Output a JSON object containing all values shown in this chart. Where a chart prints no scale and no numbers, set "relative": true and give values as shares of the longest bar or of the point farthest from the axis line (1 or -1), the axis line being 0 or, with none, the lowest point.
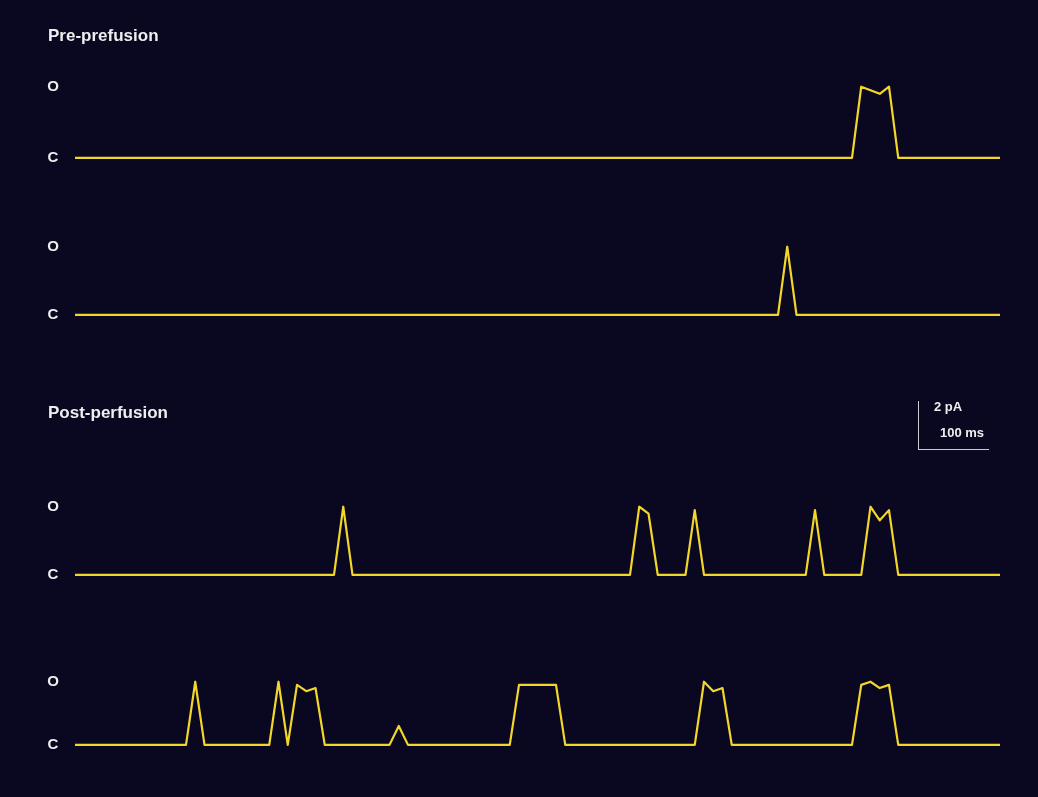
{
  "chart_data": [
    {
      "type": "line",
      "title": "Pre-prefusion",
      "relative": true,
      "annotations": [
        "O",
        "C"
      ],
      "categories": [
        null,
        null,
        null,
        null,
        null,
        null,
        null,
        null,
        null,
        null,
        null,
        null,
        null,
        null,
        null,
        null,
        null,
        null,
        null,
        null,
        null,
        null,
        null,
        null,
        null,
        null,
        null,
        null,
        null,
        null,
        null,
        null,
        null,
        null,
        null,
        null,
        null,
        null,
        null,
        null,
        null,
        null,
        null,
        null,
        null,
        null,
        null,
        null,
        null,
        null,
        null,
        null,
        null,
        null,
        null,
        null,
        null,
        null,
        null,
        null,
        null,
        null,
        null,
        null,
        null,
        null,
        null,
        null,
        null,
        null,
        null,
        null,
        null,
        null,
        null,
        null,
        null,
        null,
        null,
        null,
        null,
        null,
        null,
        null,
        null,
        null,
        null,
        null,
        null,
        null,
        null,
        null,
        null,
        null,
        null,
        null,
        null,
        null,
        null,
        null,
        null
      ],
      "series": [
        {
          "color": "#f2d62a",
          "values": [
            0,
            0,
            0,
            0,
            0,
            0,
            0,
            0,
            0,
            0,
            0,
            0,
            0,
            0,
            0,
            0,
            0,
            0,
            0,
            0,
            0,
            0,
            0,
            0,
            0,
            0,
            0,
            0,
            0,
            0,
            0,
            0,
            0,
            0,
            0,
            0,
            0,
            0,
            0,
            0,
            0,
            0,
            0,
            0,
            0,
            0,
            0,
            0,
            0,
            0,
            0,
            0,
            0,
            0,
            0,
            0,
            0,
            0,
            0,
            0,
            0,
            0,
            0,
            0,
            0,
            0,
            0,
            0,
            0,
            0,
            0,
            0,
            0,
            0,
            0,
            0,
            0,
            0,
            0,
            0,
            0,
            0,
            0,
            0,
            0,
            1,
            0.95,
            0.9,
            1,
            0,
            0,
            0,
            0,
            0,
            0,
            0,
            0,
            0,
            0,
            0,
            0
          ]
        }
      ]
    },
    {
      "type": "line",
      "relative": true,
      "annotations": [
        "O",
        "C"
      ],
      "categories": [
        null,
        null,
        null,
        null,
        null,
        null,
        null,
        null,
        null,
        null,
        null,
        null,
        null,
        null,
        null,
        null,
        null,
        null,
        null,
        null,
        null,
        null,
        null,
        null,
        null,
        null,
        null,
        null,
        null,
        null,
        null,
        null,
        null,
        null,
        null,
        null,
        null,
        null,
        null,
        null,
        null,
        null,
        null,
        null,
        null,
        null,
        null,
        null,
        null,
        null,
        null,
        null,
        null,
        null,
        null,
        null,
        null,
        null,
        null,
        null,
        null,
        null,
        null,
        null,
        null,
        null,
        null,
        null,
        null,
        null,
        null,
        null,
        null,
        null,
        null,
        null,
        null,
        null,
        null,
        null,
        null,
        null,
        null,
        null,
        null,
        null,
        null,
        null,
        null,
        null,
        null,
        null,
        null,
        null,
        null,
        null,
        null,
        null,
        null,
        null,
        null
      ],
      "series": [
        {
          "color": "#f2d62a",
          "values": [
            0,
            0,
            0,
            0,
            0,
            0,
            0,
            0,
            0,
            0,
            0,
            0,
            0,
            0,
            0,
            0,
            0,
            0,
            0,
            0,
            0,
            0,
            0,
            0,
            0,
            0,
            0,
            0,
            0,
            0,
            0,
            0,
            0,
            0,
            0,
            0,
            0,
            0,
            0,
            0,
            0,
            0,
            0,
            0,
            0,
            0,
            0,
            0,
            0,
            0,
            0,
            0,
            0,
            0,
            0,
            0,
            0,
            0,
            0,
            0,
            0,
            0,
            0,
            0,
            0,
            0,
            0,
            0,
            0,
            0,
            0,
            0,
            0,
            0,
            0,
            0,
            0,
            1,
            0,
            0,
            0,
            0,
            0,
            0,
            0,
            0,
            0,
            0,
            0,
            0,
            0,
            0,
            0,
            0,
            0,
            0,
            0,
            0,
            0,
            0,
            0
          ]
        }
      ]
    },
    {
      "type": "line",
      "title": "Post-perfusion",
      "relative": true,
      "annotations": [
        "2 pA",
        "100 ms",
        "O",
        "C"
      ],
      "categories": [
        null,
        null,
        null,
        null,
        null,
        null,
        null,
        null,
        null,
        null,
        null,
        null,
        null,
        null,
        null,
        null,
        null,
        null,
        null,
        null,
        null,
        null,
        null,
        null,
        null,
        null,
        null,
        null,
        null,
        null,
        null,
        null,
        null,
        null,
        null,
        null,
        null,
        null,
        null,
        null,
        null,
        null,
        null,
        null,
        null,
        null,
        null,
        null,
        null,
        null,
        null,
        null,
        null,
        null,
        null,
        null,
        null,
        null,
        null,
        null,
        null,
        null,
        null,
        null,
        null,
        null,
        null,
        null,
        null,
        null,
        null,
        null,
        null,
        null,
        null,
        null,
        null,
        null,
        null,
        null,
        null,
        null,
        null,
        null,
        null,
        null,
        null,
        null,
        null,
        null,
        null,
        null,
        null,
        null,
        null,
        null,
        null,
        null,
        null,
        null,
        null
      ],
      "series": [
        {
          "color": "#f2d62a",
          "values": [
            0,
            0,
            0,
            0,
            0,
            0,
            0,
            0,
            0,
            0,
            0,
            0,
            0,
            0,
            0,
            0,
            0,
            0,
            0,
            0,
            0,
            0,
            0,
            0,
            0,
            0,
            0,
            0,
            0,
            1,
            0,
            0,
            0,
            0,
            0,
            0,
            0,
            0,
            0,
            0,
            0,
            0,
            0,
            0,
            0,
            0,
            0,
            0,
            0,
            0,
            0,
            0,
            0,
            0,
            0,
            0,
            0,
            0,
            0,
            0,
            0,
            1,
            0.9,
            0,
            0,
            0,
            0,
            0.95,
            0,
            0,
            0,
            0,
            0,
            0,
            0,
            0,
            0,
            0,
            0,
            0,
            0.95,
            0,
            0,
            0,
            0,
            0,
            1,
            0.8,
            0.95,
            0,
            0,
            0,
            0,
            0,
            0,
            0,
            0,
            0,
            0,
            0,
            0
          ]
        }
      ]
    },
    {
      "type": "line",
      "relative": true,
      "annotations": [
        "O",
        "C"
      ],
      "categories": [
        null,
        null,
        null,
        null,
        null,
        null,
        null,
        null,
        null,
        null,
        null,
        null,
        null,
        null,
        null,
        null,
        null,
        null,
        null,
        null,
        null,
        null,
        null,
        null,
        null,
        null,
        null,
        null,
        null,
        null,
        null,
        null,
        null,
        null,
        null,
        null,
        null,
        null,
        null,
        null,
        null,
        null,
        null,
        null,
        null,
        null,
        null,
        null,
        null,
        null,
        null,
        null,
        null,
        null,
        null,
        null,
        null,
        null,
        null,
        null,
        null,
        null,
        null,
        null,
        null,
        null,
        null,
        null,
        null,
        null,
        null,
        null,
        null,
        null,
        null,
        null,
        null,
        null,
        null,
        null,
        null,
        null,
        null,
        null,
        null,
        null,
        null,
        null,
        null,
        null,
        null,
        null,
        null,
        null,
        null,
        null,
        null,
        null,
        null,
        null,
        null
      ],
      "series": [
        {
          "color": "#f2d62a",
          "values": [
            0,
            0,
            0,
            0,
            0,
            0,
            0,
            0,
            0,
            0,
            0,
            0,
            0,
            1,
            0,
            0,
            0,
            0,
            0,
            0,
            0,
            0,
            1,
            0,
            0.95,
            0.85,
            0.9,
            0,
            0,
            0,
            0,
            0,
            0,
            0,
            0,
            0.3,
            0,
            0,
            0,
            0,
            0,
            0,
            0,
            0,
            0,
            0,
            0,
            0,
            0.95,
            0.95,
            0.95,
            0.95,
            0.95,
            0,
            0,
            0,
            0,
            0,
            0,
            0,
            0,
            0,
            0,
            0,
            0,
            0,
            0,
            0,
            1,
            0.85,
            0.9,
            0,
            0,
            0,
            0,
            0,
            0,
            0,
            0,
            0,
            0,
            0,
            0,
            0,
            0,
            0.95,
            1,
            0.9,
            0.95,
            0,
            0,
            0,
            0,
            0,
            0,
            0,
            0,
            0,
            0,
            0,
            0
          ]
        }
      ]
    }
  ]
}
